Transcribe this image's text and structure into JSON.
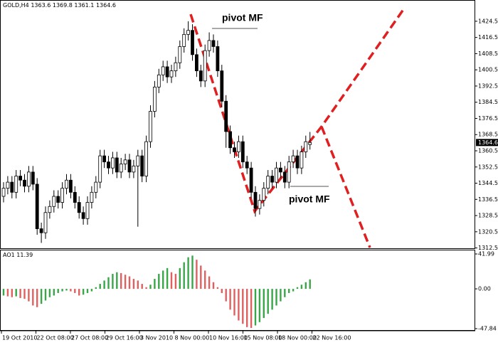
{
  "chart_data": [
    {
      "type": "candlestick",
      "symbol": "GOLD,H4",
      "open": [
        1338,
        1342,
        1345,
        1340,
        1348,
        1346,
        1343,
        1350,
        1344,
        1322,
        1320,
        1330,
        1333,
        1338,
        1335,
        1342,
        1346,
        1340,
        1335,
        1330,
        1327,
        1335,
        1340,
        1345,
        1358,
        1355,
        1352,
        1357,
        1350,
        1354,
        1356,
        1350,
        1353,
        1358,
        1348,
        1365,
        1380,
        1392,
        1398,
        1402,
        1397,
        1400,
        1404,
        1412,
        1418,
        1420,
        1408,
        1400,
        1395,
        1410,
        1415,
        1412,
        1400,
        1385,
        1370,
        1362,
        1360,
        1365,
        1355,
        1352,
        1340,
        1332,
        1336,
        1342,
        1348,
        1345,
        1352,
        1350,
        1345,
        1355,
        1358,
        1352,
        1360,
        1363.6
      ],
      "high": [
        1345,
        1348,
        1348,
        1351,
        1351,
        1349,
        1353,
        1353,
        1347,
        1325,
        1333,
        1336,
        1341,
        1341,
        1345,
        1349,
        1349,
        1343,
        1338,
        1333,
        1338,
        1343,
        1348,
        1361,
        1361,
        1358,
        1360,
        1360,
        1357,
        1359,
        1359,
        1356,
        1361,
        1361,
        1368,
        1383,
        1395,
        1401,
        1405,
        1405,
        1403,
        1407,
        1415,
        1421,
        1424.5,
        1423,
        1411,
        1403,
        1413,
        1419,
        1418,
        1415,
        1403,
        1388,
        1373,
        1365,
        1368,
        1368,
        1358,
        1355,
        1343,
        1339,
        1345,
        1351,
        1351,
        1355,
        1355,
        1353,
        1358,
        1361,
        1361,
        1363,
        1368,
        1369.8
      ],
      "low": [
        1335,
        1339,
        1337,
        1337,
        1343,
        1340,
        1340,
        1341,
        1319,
        1315,
        1317,
        1327,
        1330,
        1332,
        1332,
        1339,
        1337,
        1332,
        1327,
        1324,
        1324,
        1332,
        1337,
        1342,
        1352,
        1349,
        1349,
        1347,
        1347,
        1351,
        1347,
        1347,
        1323,
        1345,
        1345,
        1362,
        1377,
        1389,
        1395,
        1394,
        1394,
        1397,
        1401,
        1409,
        1415,
        1405,
        1397,
        1392,
        1392,
        1407,
        1409,
        1397,
        1382,
        1362,
        1359,
        1357,
        1357,
        1352,
        1349,
        1337,
        1328,
        1329,
        1333,
        1339,
        1342,
        1342,
        1347,
        1342,
        1342,
        1352,
        1349,
        1349,
        1357,
        1361.1
      ],
      "close": [
        1342,
        1345,
        1340,
        1348,
        1346,
        1343,
        1350,
        1344,
        1322,
        1320,
        1330,
        1333,
        1338,
        1335,
        1342,
        1346,
        1340,
        1335,
        1330,
        1327,
        1335,
        1340,
        1345,
        1358,
        1355,
        1352,
        1357,
        1350,
        1354,
        1356,
        1350,
        1353,
        1358,
        1348,
        1365,
        1380,
        1392,
        1398,
        1402,
        1397,
        1400,
        1404,
        1412,
        1418,
        1420,
        1408,
        1400,
        1395,
        1410,
        1415,
        1412,
        1400,
        1385,
        1370,
        1362,
        1360,
        1365,
        1355,
        1352,
        1340,
        1332,
        1336,
        1342,
        1348,
        1345,
        1352,
        1350,
        1345,
        1355,
        1358,
        1352,
        1360,
        1365,
        1364.6
      ],
      "ylim": [
        1312,
        1435
      ],
      "yticks": [
        1312.5,
        1320.5,
        1328.5,
        1336.5,
        1344.5,
        1352.5,
        1360.5,
        1368.5,
        1376.5,
        1384.5,
        1392.5,
        1400.5,
        1408.5,
        1416.5,
        1424.5
      ],
      "up_color": "#ffffff",
      "down_color": "#000000",
      "xtick_labels": [
        "19 Oct 2010",
        "22 Oct 08:00",
        "27 Oct 08:00",
        "29 Oct 16:00",
        "3 Nov 2010",
        "8 Nov 00:00",
        "10 Nov 16:00",
        "15 Nov 08:00",
        "18 Nov 00:00",
        "22 Nov 16:00"
      ],
      "annotations": [
        "pivot MF",
        "pivot MF"
      ]
    },
    {
      "type": "bar",
      "title": "AO1",
      "values": [
        -8,
        -9,
        -10,
        -9,
        -11,
        -12,
        -15,
        -20,
        -22,
        -18,
        -14,
        -10,
        -8,
        -5,
        -3,
        -2,
        -3,
        -5,
        -8,
        -7,
        -5,
        -3,
        2,
        6,
        10,
        14,
        18,
        20,
        19,
        17,
        15,
        12,
        10,
        6,
        2,
        5,
        12,
        18,
        22,
        25,
        20,
        18,
        25,
        32,
        38,
        40,
        35,
        28,
        22,
        15,
        8,
        2,
        -5,
        -15,
        -25,
        -32,
        -38,
        -42,
        -46,
        -47,
        -44,
        -40,
        -35,
        -30,
        -25,
        -20,
        -15,
        -10,
        -5,
        -3,
        2,
        5,
        8,
        11.39
      ],
      "ylim": [
        -47.84,
        41.99
      ],
      "yticks": [
        41.99,
        {
          "value": 0,
          "label": "0.00"
        },
        -47.84
      ],
      "up_color": "#3aa64a",
      "down_color": "#e06060"
    }
  ]
}
